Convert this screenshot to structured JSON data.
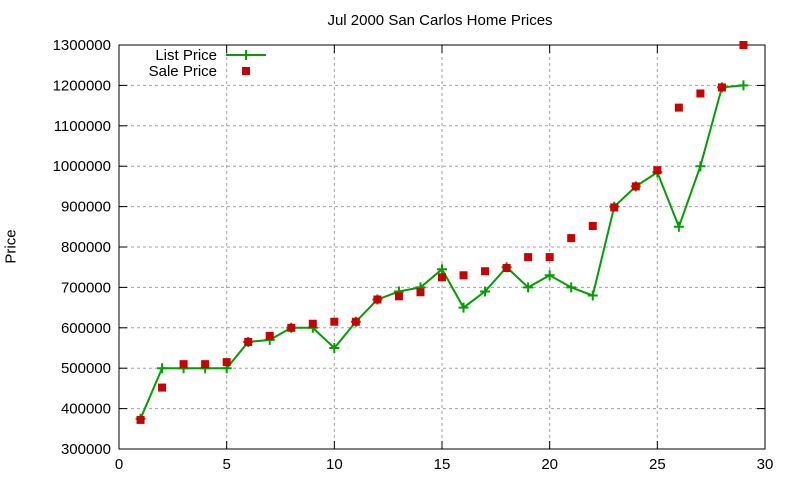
{
  "chart_data": {
    "type": "line",
    "title": "Jul 2000 San Carlos Home Prices",
    "xlabel": "",
    "ylabel": "Price",
    "xlim": [
      0,
      30
    ],
    "ylim": [
      300000,
      1300000
    ],
    "xticks": [
      0,
      5,
      10,
      15,
      20,
      25,
      30
    ],
    "yticks": [
      300000,
      400000,
      500000,
      600000,
      700000,
      800000,
      900000,
      1000000,
      1100000,
      1200000,
      1300000
    ],
    "grid": true,
    "legend_position": "top-left",
    "x": [
      1,
      2,
      3,
      4,
      5,
      6,
      7,
      8,
      9,
      10,
      11,
      12,
      13,
      14,
      15,
      16,
      17,
      18,
      19,
      20,
      21,
      22,
      23,
      24,
      25,
      26,
      27,
      28,
      29
    ],
    "series": [
      {
        "name": "List Price",
        "style": "lines+points",
        "color": "#00a000",
        "values": [
          375000,
          500000,
          500000,
          500000,
          500000,
          565000,
          570000,
          600000,
          600000,
          550000,
          615000,
          670000,
          690000,
          700000,
          745000,
          650000,
          690000,
          750000,
          700000,
          730000,
          700000,
          680000,
          900000,
          950000,
          985000,
          850000,
          1000000,
          1195000,
          1200000
        ]
      },
      {
        "name": "Sale Price",
        "style": "points",
        "color": "#cc0000",
        "values": [
          372000,
          452000,
          510000,
          510000,
          515000,
          565000,
          580000,
          600000,
          610000,
          615000,
          615000,
          670000,
          678000,
          688000,
          725000,
          730000,
          740000,
          748000,
          775000,
          775000,
          822000,
          852000,
          898000,
          950000,
          990000,
          1145000,
          1180000,
          1195000,
          1300000
        ]
      }
    ]
  }
}
